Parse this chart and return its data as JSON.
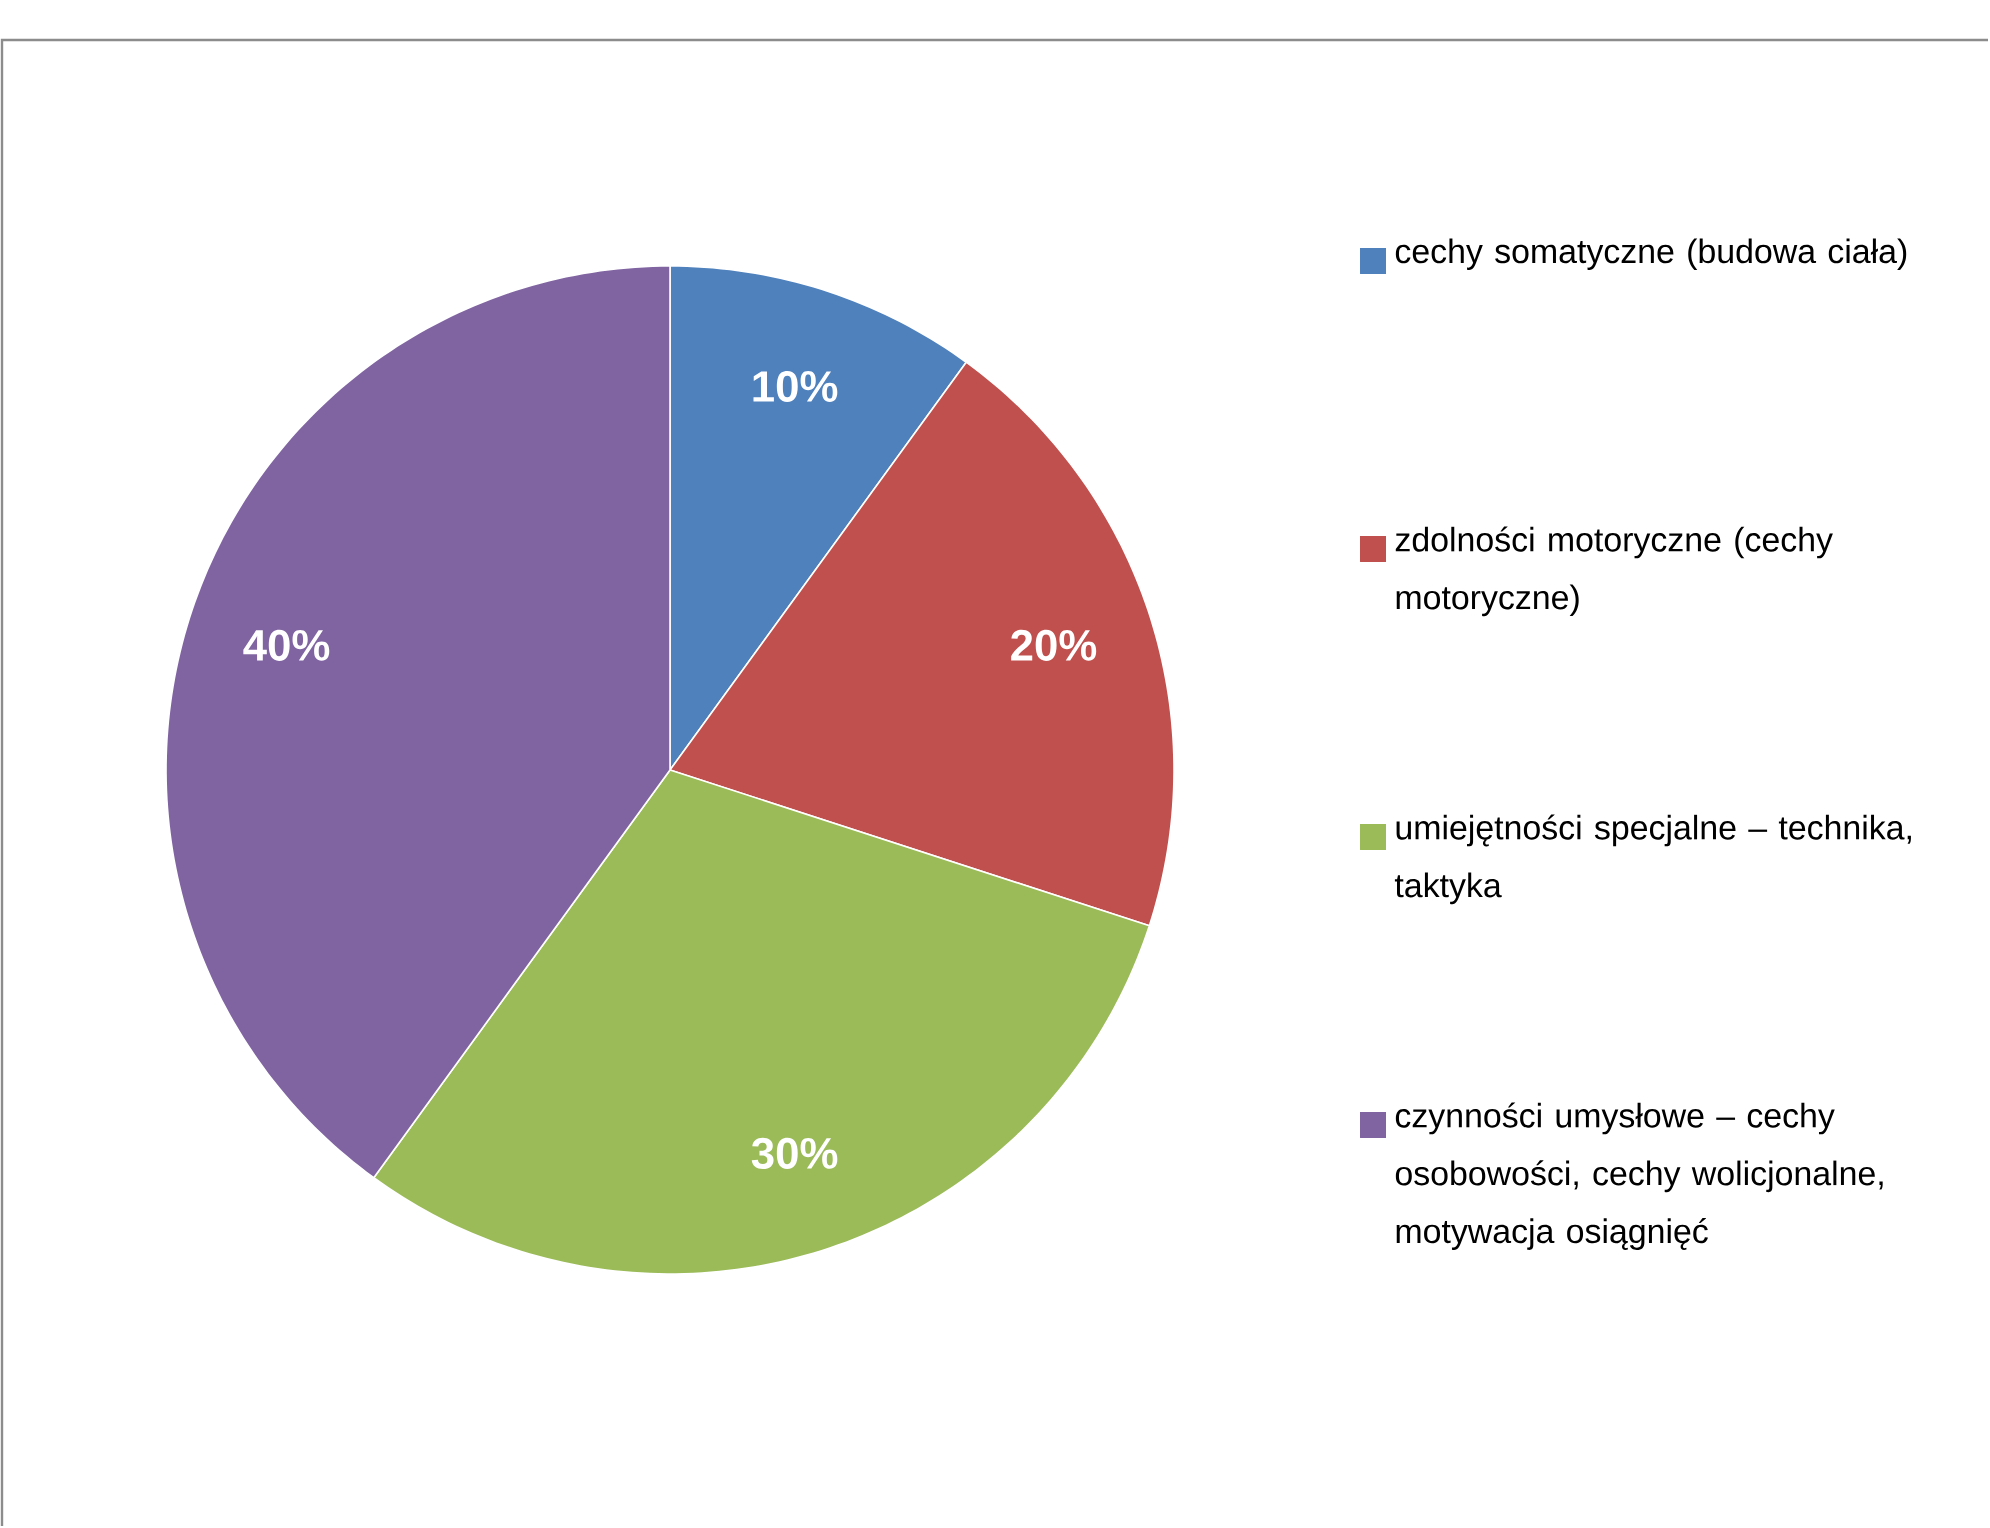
{
  "chart_data": {
    "type": "pie",
    "categories": [
      "cechy somatyczne (budowa ciała)",
      "zdolności motoryczne (cechy motoryczne)",
      "umiejętności specjalne – technika, taktyka",
      "czynności umysłowe – cechy osobowości, cechy wolicjonalne, motywacja osiągnięć"
    ],
    "values": [
      10,
      20,
      30,
      40
    ],
    "value_labels": [
      "10%",
      "20%",
      "30%",
      "40%"
    ],
    "colors": [
      "#4f81bd",
      "#c0504d",
      "#9bbb59",
      "#8064a2"
    ],
    "legend": "right"
  }
}
